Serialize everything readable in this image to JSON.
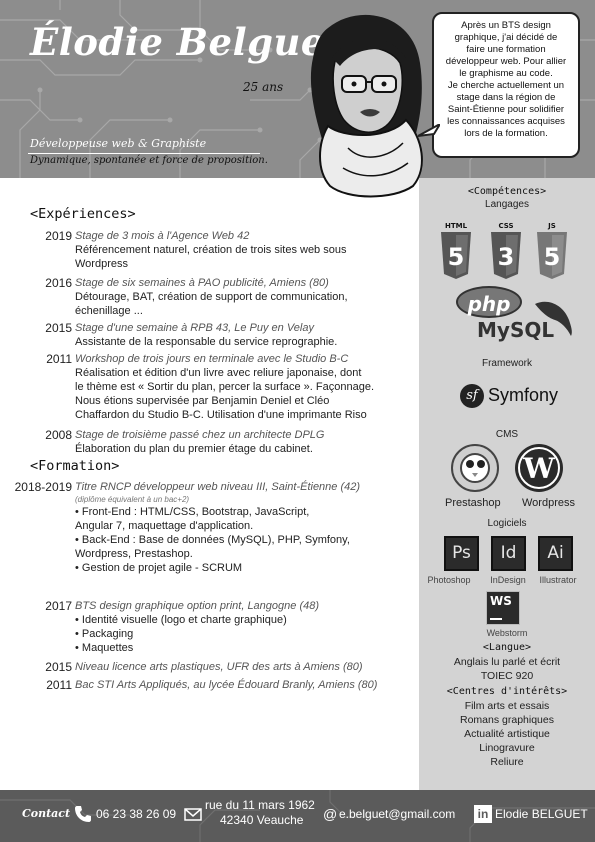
{
  "header": {
    "name": "Élodie Belguet",
    "age": "25 ans",
    "role": "Développeuse web & Graphiste",
    "tagline": "Dynamique, spontanée et force de proposition.",
    "bubble_text": "Après un BTS design\ngraphique, j'ai décidé de\nfaire une formation\ndéveloppeur web.  Pour allier\nle graphisme au code.\nJe cherche actuellement un\nstage dans la région de\nSaint-Étienne pour solidifier\nles connaissances acquises\nlors de la formation."
  },
  "experiences": {
    "title": "<Expériences>",
    "items": [
      {
        "year": "2019",
        "title": "Stage de 3 mois à l'Agence Web 42",
        "desc": [
          "Référencement naturel, création de trois sites web sous",
          "Wordpress"
        ]
      },
      {
        "year": "2016",
        "title": "Stage de six semaines à PAO publicité, Amiens (80)",
        "desc": [
          "Détourage, BAT, création de support de communication,",
          "échenillage ..."
        ]
      },
      {
        "year": "2015",
        "title": "Stage d'une semaine à RPB 43, Le Puy en Velay",
        "desc": [
          "Assistante de la responsable du service reprographie."
        ]
      },
      {
        "year": "2011",
        "title": "Workshop de trois jours en terminale avec le Studio B-C",
        "desc": [
          "Réalisation et édition d'un livre avec reliure japonaise, dont",
          "le thème est « Sortir du plan, percer la surface ». Façonnage.",
          "Nous étions supervisée par Benjamin Deniel et Cléo",
          "Chaffardon du Studio B-C. Utilisation d'une imprimante Riso"
        ]
      },
      {
        "year": "2008",
        "title": "Stage de troisième passé chez un architecte DPLG",
        "desc": [
          "Élaboration du plan du premier étage du cabinet."
        ]
      }
    ]
  },
  "formation": {
    "title": "<Formation>",
    "items": [
      {
        "year": "2018-2019",
        "title": "Titre RNCP développeur web niveau III, Saint-Étienne (42)",
        "note": "(diplôme équivalent à un bac+2)",
        "desc": [
          "• Front-End : HTML/CSS, Bootstrap, JavaScript,",
          "Angular 7, maquettage d'application.",
          "• Back-End : Base de données (MySQL), PHP, Symfony,",
          "Wordpress, Prestashop.",
          "• Gestion de projet agile - SCRUM"
        ]
      },
      {
        "year": "2017",
        "title": "BTS design graphique option print, Langogne (48)",
        "desc": [
          "• Identité visuelle (logo et charte graphique)",
          "• Packaging",
          "• Maquettes"
        ]
      },
      {
        "year": "2015",
        "title": "Niveau licence arts plastiques, UFR des arts à Amiens (80)"
      },
      {
        "year": "2011",
        "title": "Bac STI Arts Appliqués, au lycée Édouard Branly, Amiens (80)"
      }
    ]
  },
  "sidebar": {
    "competences_title": "<Compétences>",
    "langages_label": "Langages",
    "langages": [
      "HTML",
      "CSS",
      "JS"
    ],
    "shield_numbers": [
      "5",
      "3",
      "5"
    ],
    "php": "php",
    "mysql": "MySQL",
    "framework_label": "Framework",
    "framework": "Symfony",
    "symfony_mark": "sf",
    "cms_label": "CMS",
    "cms": [
      "Prestashop",
      "Wordpress"
    ],
    "logiciels_label": "Logiciels",
    "logiciels": [
      {
        "abbr": "Ps",
        "name": "Photoshop"
      },
      {
        "abbr": "Id",
        "name": "InDesign"
      },
      {
        "abbr": "Ai",
        "name": "Illustrator"
      }
    ],
    "webstorm": {
      "abbr": "WS",
      "name": "Webstorm"
    },
    "langue_title": "<Langue>",
    "langue": [
      "Anglais lu parlé et écrit",
      "TOIEC 920"
    ],
    "interets_title": "<Centres d'intérêts>",
    "interets": [
      "Film arts et essais",
      "Romans graphiques",
      "Actualité artistique",
      "Linogravure",
      "Reliure"
    ]
  },
  "footer": {
    "contact_label": "Contact",
    "phone": "06 23 38 26 09",
    "address_line1": "rue du 11 mars 1962",
    "address_line2": "42340 Veauche",
    "email": "e.belguet@gmail.com",
    "linkedin": "Elodie BELGUET",
    "linkedin_mark": "in",
    "email_mark": "@"
  }
}
